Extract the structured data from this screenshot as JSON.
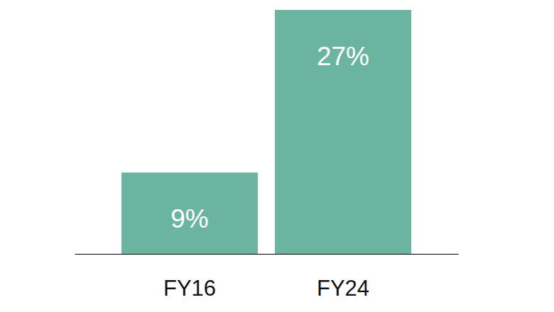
{
  "chart_data": {
    "type": "bar",
    "categories": [
      "FY16",
      "FY24"
    ],
    "values": [
      9,
      27
    ],
    "value_labels": [
      "9%",
      "27%"
    ],
    "color": "#6bb5a0",
    "ylim": [
      0,
      27
    ],
    "data_labels": true,
    "tick_labels": "x"
  }
}
